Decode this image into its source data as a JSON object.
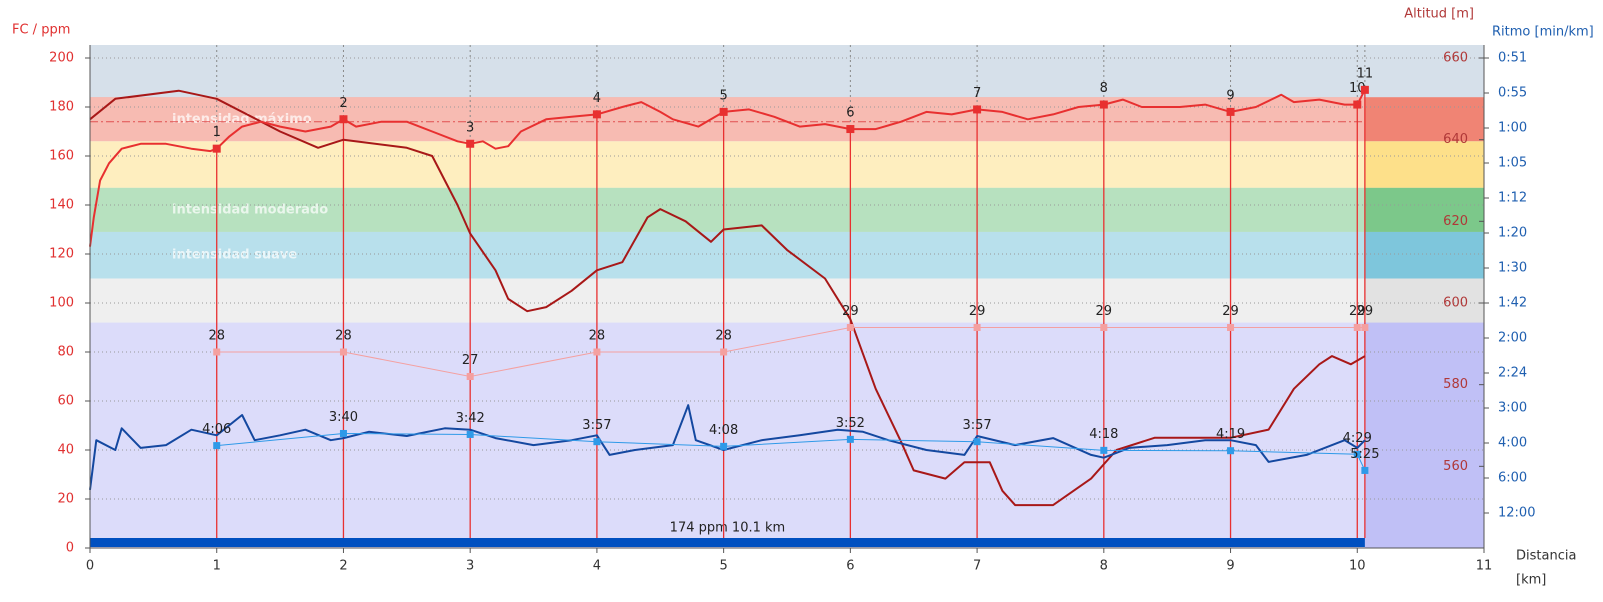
{
  "chart_data": {
    "type": "line",
    "x_label": "Distancia",
    "x_unit": "[km]",
    "xlim": [
      0,
      11
    ],
    "xticks": [
      0,
      1,
      2,
      3,
      4,
      5,
      6,
      7,
      8,
      9,
      10,
      11
    ],
    "y_label": "FC / ppm",
    "ylim": [
      0,
      200
    ],
    "yticks": [
      0,
      20,
      40,
      60,
      80,
      100,
      120,
      140,
      160,
      180,
      200
    ],
    "y_color": "#e03030",
    "y2_label": "Altitud [m]",
    "y2lim": [
      540,
      660
    ],
    "y2ticks": [
      560,
      580,
      600,
      620,
      640,
      660
    ],
    "y2_color": "#b03838",
    "y3_label": "Ritmo [min/km]",
    "y3lim": [
      0,
      70
    ],
    "y3ticks": [
      {
        "value": 5,
        "label": "12:00"
      },
      {
        "value": 10,
        "label": "6:00"
      },
      {
        "value": 15,
        "label": "4:00"
      },
      {
        "value": 20,
        "label": "3:00"
      },
      {
        "value": 25,
        "label": "2:24"
      },
      {
        "value": 30,
        "label": "2:00"
      },
      {
        "value": 35,
        "label": "1:42"
      },
      {
        "value": 40,
        "label": "1:30"
      },
      {
        "value": 45,
        "label": "1:20"
      },
      {
        "value": 50,
        "label": "1:12"
      },
      {
        "value": 55,
        "label": "1:05"
      },
      {
        "value": 60,
        "label": "1:00"
      },
      {
        "value": 65,
        "label": "0:55"
      },
      {
        "value": 70,
        "label": "0:51"
      }
    ],
    "y3_color": "#1f5fb0",
    "y4lim": [
      20,
      40
    ],
    "grid": true,
    "zones": [
      {
        "from": 166,
        "to": 184,
        "color": "#f08474",
        "name": "intensidad máximo"
      },
      {
        "from": 147,
        "to": 166,
        "color": "#fde08a"
      },
      {
        "from": 129,
        "to": 147,
        "color": "#7cc88a",
        "name": "intensidad moderado"
      },
      {
        "from": 110,
        "to": 129,
        "color": "#7ec6dc",
        "name": "intensidad suave"
      },
      {
        "from": 92,
        "to": 110,
        "color": "#e2e2e2"
      },
      {
        "from": 0,
        "to": 92,
        "color": "#c0c0f6"
      }
    ],
    "summary": {
      "label": "174 ppm 10.1 km",
      "avg_hr": 174,
      "distance": 10.06,
      "color": "#0050c0"
    },
    "series": [
      {
        "axis": "y2",
        "color": "#a81818",
        "x": [
          0,
          0.2,
          0.7,
          1.0,
          1.5,
          1.8,
          2.0,
          2.5,
          2.7,
          2.9,
          3.0,
          3.2,
          3.3,
          3.45,
          3.6,
          3.8,
          4.0,
          4.2,
          4.4,
          4.5,
          4.7,
          4.9,
          5.0,
          5.3,
          5.5,
          5.8,
          6.0,
          6.2,
          6.4,
          6.5,
          6.75,
          6.9,
          7.1,
          7.2,
          7.3,
          7.6,
          7.9,
          8.1,
          8.4,
          9.0,
          9.3,
          9.5,
          9.7,
          9.8,
          9.95,
          10.06
        ],
        "values": [
          645,
          650,
          652,
          650,
          642,
          638,
          640,
          638,
          636,
          624,
          617,
          608,
          601,
          598,
          599,
          603,
          608,
          610,
          621,
          623,
          620,
          615,
          618,
          619,
          613,
          606,
          596,
          579,
          566,
          559,
          557,
          561,
          561,
          554,
          550.5,
          550.5,
          557,
          564,
          567,
          567,
          569,
          579,
          585,
          587,
          585,
          587
        ]
      },
      {
        "axis": "y3",
        "color": "#1448a0",
        "x": [
          0,
          0.05,
          0.2,
          0.25,
          0.4,
          0.6,
          0.8,
          1.0,
          1.2,
          1.3,
          1.5,
          1.7,
          1.9,
          2.0,
          2.2,
          2.5,
          2.8,
          3.0,
          3.2,
          3.5,
          3.8,
          4.0,
          4.1,
          4.3,
          4.6,
          4.72,
          4.78,
          5.0,
          5.3,
          5.6,
          5.9,
          6.1,
          6.3,
          6.6,
          6.9,
          7.0,
          7.3,
          7.6,
          7.9,
          8.0,
          8.2,
          8.5,
          8.8,
          9.0,
          9.2,
          9.3,
          9.6,
          9.9,
          10.0,
          10.06
        ],
        "values": [
          8.3,
          15.4,
          14.0,
          17.1,
          14.3,
          14.7,
          16.9,
          16.1,
          19.0,
          15.4,
          16.1,
          16.9,
          15.4,
          15.7,
          16.6,
          16.0,
          17.1,
          16.9,
          15.7,
          14.7,
          15.4,
          16.1,
          13.3,
          14.0,
          14.7,
          20.4,
          15.4,
          14.0,
          15.4,
          16.1,
          16.9,
          16.6,
          15.4,
          14.0,
          13.3,
          16.0,
          14.7,
          15.7,
          13.3,
          12.9,
          14.3,
          14.7,
          15.4,
          15.4,
          14.7,
          12.3,
          13.3,
          15.4,
          14.3,
          15.4
        ]
      },
      {
        "axis": "y",
        "color": "#e83030",
        "x": [
          0,
          0.03,
          0.08,
          0.15,
          0.25,
          0.4,
          0.6,
          0.8,
          0.95,
          1.0,
          1.1,
          1.2,
          1.35,
          1.5,
          1.7,
          1.9,
          2.0,
          2.1,
          2.3,
          2.5,
          2.7,
          2.9,
          3.0,
          3.1,
          3.2,
          3.3,
          3.4,
          3.6,
          3.8,
          4.0,
          4.2,
          4.35,
          4.5,
          4.6,
          4.8,
          5.0,
          5.2,
          5.4,
          5.6,
          5.8,
          6.0,
          6.2,
          6.4,
          6.6,
          6.8,
          7.0,
          7.2,
          7.4,
          7.6,
          7.8,
          8.0,
          8.15,
          8.3,
          8.6,
          8.8,
          9.0,
          9.2,
          9.4,
          9.5,
          9.7,
          9.9,
          10.0,
          10.06
        ],
        "values": [
          123,
          135,
          150,
          157,
          163,
          165,
          165,
          163,
          162,
          163,
          168,
          172,
          174,
          172,
          170,
          172,
          175,
          172,
          174,
          174,
          170,
          166,
          165,
          166,
          163,
          164,
          170,
          175,
          176,
          177,
          180,
          182,
          178,
          175,
          172,
          178,
          179,
          176,
          172,
          173,
          171,
          171,
          174,
          178,
          177,
          179,
          178,
          175,
          177,
          180,
          181,
          183,
          180,
          180,
          181,
          178,
          180,
          185,
          182,
          183,
          181,
          181,
          187
        ]
      }
    ],
    "laps": {
      "x": [
        1,
        2,
        3,
        4,
        5,
        6,
        7,
        8,
        9,
        10,
        10.06
      ],
      "labels": [
        1,
        2,
        3,
        4,
        5,
        6,
        7,
        8,
        9,
        10,
        11
      ],
      "hr": {
        "color": "#e83030",
        "values": [
          163,
          175,
          165,
          177,
          178,
          171,
          179,
          181,
          178,
          181,
          187
        ]
      },
      "cadence": {
        "axis": "y4",
        "color": "#f4a0a0",
        "values": [
          28,
          28,
          27,
          28,
          28,
          29,
          29,
          29,
          29,
          29,
          29
        ]
      },
      "pace": {
        "axis": "y3",
        "color": "#2f9ae8",
        "values": [
          14.63,
          16.36,
          16.22,
          15.19,
          14.52,
          15.52,
          15.19,
          13.95,
          13.9,
          13.38,
          11.08
        ],
        "value_labels": [
          "4:06",
          "3:40",
          "3:42",
          "3:57",
          "4:08",
          "3:52",
          "3:57",
          "4:18",
          "4:19",
          "4:29",
          "5:25"
        ]
      }
    }
  }
}
